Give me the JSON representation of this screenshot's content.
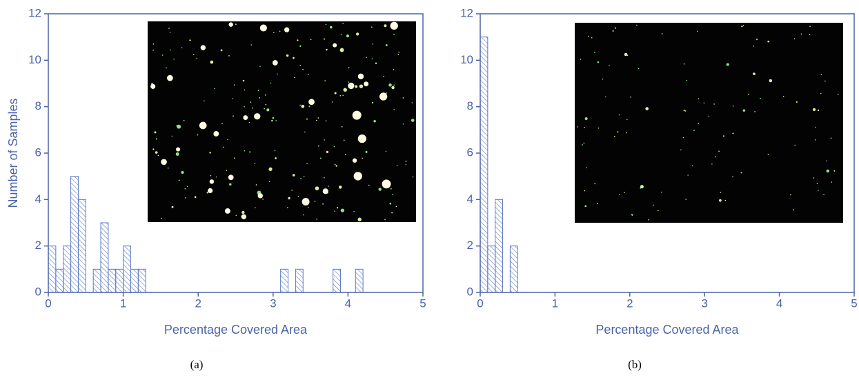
{
  "chart_data": [
    {
      "type": "histogram",
      "xlabel": "Percentage Covered Area",
      "ylabel": "Number of Samples",
      "caption": "(a)",
      "bins": [
        0,
        0.1,
        0.2,
        0.3,
        0.4,
        0.5,
        0.6,
        0.7,
        0.8,
        0.9,
        1,
        1.1,
        1.2,
        1.3,
        1.4,
        1.5,
        1.6,
        1.7,
        1.8,
        1.9,
        2,
        2.1,
        2.2,
        2.3,
        2.4,
        2.5,
        2.6,
        2.7,
        2.8,
        2.9,
        3,
        3.1,
        3.2,
        3.3,
        3.4,
        3.5,
        3.6,
        3.7,
        3.8,
        3.9,
        4,
        4.1,
        4.2,
        4.3,
        4.4,
        4.5,
        4.6,
        4.7,
        4.8,
        4.9,
        5
      ],
      "values": [
        2,
        1,
        2,
        5,
        4,
        0,
        1,
        3,
        1,
        1,
        2,
        1,
        1,
        0,
        0,
        0,
        0,
        0,
        0,
        0,
        0,
        0,
        0,
        0,
        0,
        0,
        0,
        0,
        0,
        0,
        0,
        1,
        0,
        1,
        0,
        0,
        0,
        0,
        1,
        0,
        0,
        1,
        0,
        0,
        0,
        0,
        0,
        0,
        0,
        0
      ],
      "color": "#5b78c2",
      "xlim": [
        0,
        5
      ],
      "ylim": [
        0,
        12
      ],
      "xticks": [
        0,
        1,
        2,
        3,
        4,
        5
      ],
      "yticks": [
        0,
        2,
        4,
        6,
        8,
        10,
        12
      ]
    },
    {
      "type": "histogram",
      "xlabel": "Percentage Covered Area",
      "caption": "(b)",
      "bins": [
        0,
        0.1,
        0.2,
        0.3,
        0.4,
        0.5
      ],
      "values": [
        11,
        2,
        4,
        0,
        2
      ],
      "color": "#5b78c2",
      "xlim": [
        0,
        5
      ],
      "ylim": [
        0,
        12
      ],
      "xticks": [
        0,
        1,
        2,
        3,
        4,
        5
      ],
      "yticks": [
        0,
        2,
        4,
        6,
        8,
        10,
        12
      ]
    }
  ]
}
